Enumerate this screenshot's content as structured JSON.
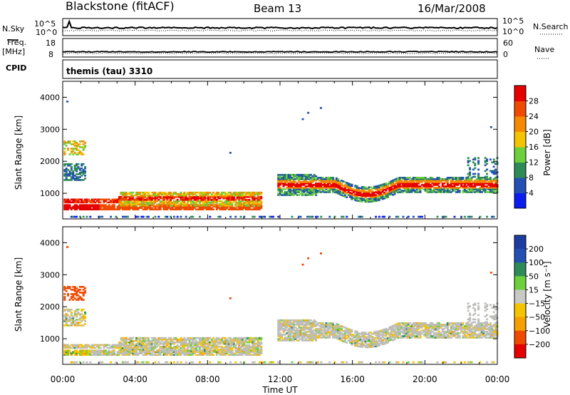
{
  "header": {
    "radar": "Blackstone (fitACF)",
    "beam": "Beam 13",
    "date": "16/Mar/2008"
  },
  "control": {
    "nsky_label": "N.Sky",
    "nsearch_label": "N.Search",
    "freq_label_1": "Freq.",
    "freq_label_2": "[MHz]",
    "nave_label": "Nave",
    "cpid_label": "CPID",
    "cpid_value": "themis (tau) 3310",
    "nsky_ticks": [
      "10^5",
      "10^0"
    ],
    "nsearch_ticks": [
      "10^5",
      "10^0"
    ],
    "freq_ticks": [
      "18",
      "8"
    ],
    "nave_ticks": [
      "60",
      "0"
    ]
  },
  "colors": {
    "power": [
      "#0a1cf0",
      "#2350b4",
      "#2e8b57",
      "#6ccf3c",
      "#f5c400",
      "#f58a00",
      "#f04a00",
      "#e60000"
    ],
    "velocity": [
      "#e60000",
      "#f04a00",
      "#f5a000",
      "#f5c400",
      "#c8c8c4",
      "#6ccf3c",
      "#2e8b57",
      "#2350b4",
      "#1c3ca0"
    ],
    "ground_scatter": "#bdbdb9"
  },
  "chart_data": [
    {
      "type": "heatmap",
      "name": "power",
      "ylabel": "Slant Range [km]",
      "y_ticks": [
        "1000",
        "2000",
        "3000",
        "4000"
      ],
      "ylim": [
        200,
        4500
      ],
      "x_ticks": [
        "00:00",
        "04:00",
        "08:00",
        "12:00",
        "16:00",
        "20:00",
        "00:00"
      ],
      "xlim_hours": [
        0,
        24
      ],
      "colorbar_label": "Power [dB]",
      "colorbar_ticks": [
        "4",
        "8",
        "12",
        "16",
        "20",
        "24",
        "28"
      ],
      "colorbar_range": [
        0,
        32
      ]
    },
    {
      "type": "heatmap",
      "name": "velocity",
      "ylabel": "Slant Range [km]",
      "y_ticks": [
        "1000",
        "2000",
        "3000",
        "4000"
      ],
      "ylim": [
        200,
        4500
      ],
      "x_ticks": [
        "00:00",
        "04:00",
        "08:00",
        "12:00",
        "16:00",
        "20:00",
        "00:00"
      ],
      "xlim_hours": [
        0,
        24
      ],
      "xlabel": "Time UT",
      "colorbar_label": "Velocity [m s⁻¹]",
      "colorbar_ticks": [
        "200",
        "100",
        "50",
        "15",
        "−15",
        "−50",
        "−100",
        "−200"
      ]
    }
  ]
}
